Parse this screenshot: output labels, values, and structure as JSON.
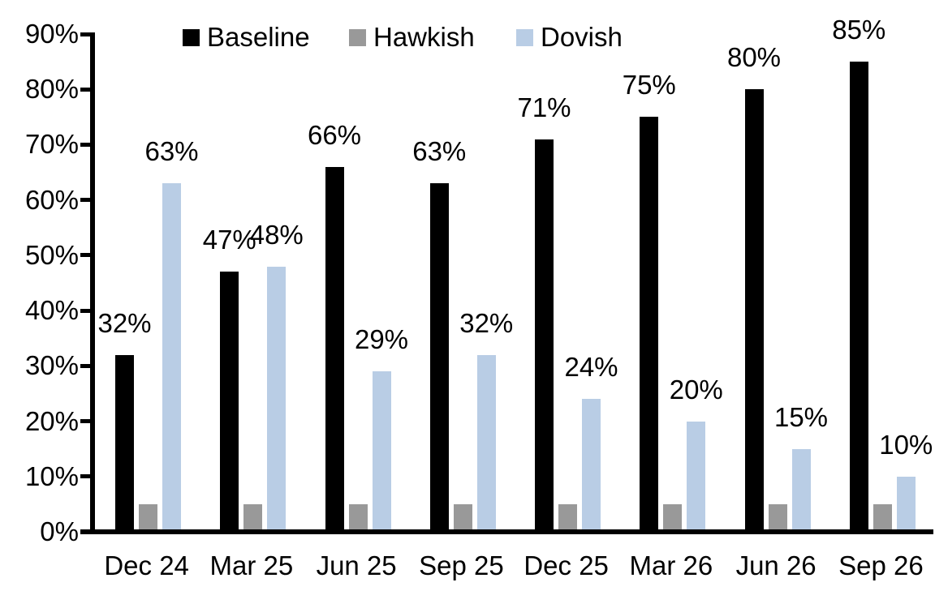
{
  "chart_data": {
    "type": "bar",
    "title": "",
    "xlabel": "",
    "ylabel": "",
    "categories": [
      "Dec 24",
      "Mar 25",
      "Jun 25",
      "Sep 25",
      "Dec 25",
      "Mar 26",
      "Jun 26",
      "Sep 26"
    ],
    "series": [
      {
        "name": "Baseline",
        "color": "#000000",
        "values": [
          32,
          47,
          66,
          63,
          71,
          75,
          80,
          85
        ],
        "data_labels": [
          "32%",
          "47%",
          "66%",
          "63%",
          "71%",
          "75%",
          "80%",
          "85%"
        ]
      },
      {
        "name": "Hawkish",
        "color": "#999999",
        "values": [
          5,
          5,
          5,
          5,
          5,
          5,
          5,
          5
        ],
        "data_labels": []
      },
      {
        "name": "Dovish",
        "color": "#b9cde5",
        "values": [
          63,
          48,
          29,
          32,
          24,
          20,
          15,
          10
        ],
        "data_labels": [
          "63%",
          "48%",
          "29%",
          "32%",
          "24%",
          "20%",
          "15%",
          "10%"
        ]
      }
    ],
    "ylim": [
      0,
      90
    ],
    "ytick_step": 10,
    "ytick_labels": [
      "0%",
      "10%",
      "20%",
      "30%",
      "40%",
      "50%",
      "60%",
      "70%",
      "80%",
      "90%"
    ],
    "value_suffix": "%",
    "grid": false,
    "legend_position": "top",
    "legend": [
      "Baseline",
      "Hawkish",
      "Dovish"
    ]
  }
}
